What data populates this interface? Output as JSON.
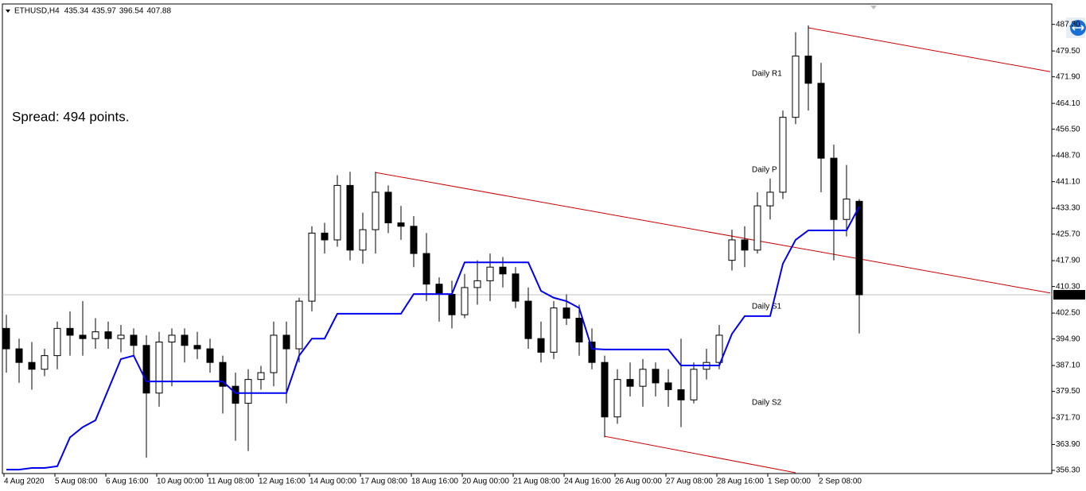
{
  "chart_data": {
    "type": "candlestick",
    "symbol": "ETHUSD,H4",
    "annotation": "Spread: 494 points.",
    "level_labels": [
      {
        "text": "Daily R1",
        "color": "#cc0000"
      },
      {
        "text": "Daily P",
        "color": "#808080"
      },
      {
        "text": "Daily S1",
        "color": "#2e9e2e"
      },
      {
        "text": "Daily S2",
        "color": "#2e9e2e"
      }
    ],
    "categories": [
      "4 Aug 2020",
      null,
      null,
      null,
      "5 Aug 08:00",
      null,
      null,
      null,
      "6 Aug 16:00",
      null,
      null,
      null,
      "10 Aug 00:00",
      null,
      null,
      null,
      "11 Aug 08:00",
      null,
      null,
      null,
      "12 Aug 16:00",
      null,
      null,
      null,
      "14 Aug 00:00",
      null,
      null,
      null,
      "17 Aug 08:00",
      null,
      null,
      null,
      "18 Aug 16:00",
      null,
      null,
      null,
      "20 Aug 00:00",
      null,
      null,
      null,
      "21 Aug 08:00",
      null,
      null,
      null,
      "24 Aug 16:00",
      null,
      null,
      null,
      "26 Aug 00:00",
      null,
      null,
      null,
      "27 Aug 08:00",
      null,
      null,
      null,
      "28 Aug 16:00",
      null,
      null,
      null,
      "1 Sep 00:00",
      null,
      null,
      null,
      "2 Sep 08:00",
      null,
      null,
      null
    ],
    "open": [
      398,
      392,
      388,
      386,
      390,
      398,
      396,
      395,
      397,
      395,
      396,
      393,
      379,
      394,
      396,
      393,
      392,
      388,
      381,
      376,
      383,
      385,
      396,
      392,
      406,
      426,
      424,
      440,
      421,
      427,
      438,
      429,
      428,
      420,
      411,
      408,
      402,
      410,
      412,
      416,
      414,
      406,
      395,
      391,
      404,
      401,
      394,
      388,
      372,
      383,
      381,
      386,
      382,
      380,
      377,
      386,
      388,
      418,
      424,
      421,
      434,
      438,
      460,
      478,
      470,
      448,
      430,
      435.34
    ],
    "high": [
      402,
      395,
      394,
      392,
      400,
      403,
      406,
      401,
      400,
      399,
      398,
      396,
      397,
      398,
      398,
      397,
      395,
      390,
      385,
      386,
      387,
      400,
      400,
      407,
      428,
      429,
      443,
      444,
      432,
      444,
      440,
      434,
      431,
      426,
      413,
      412,
      414,
      418,
      420,
      419,
      416,
      410,
      400,
      406,
      408,
      405,
      398,
      390,
      386,
      388,
      389,
      388,
      386,
      395,
      388,
      392,
      399,
      427,
      428,
      438,
      442,
      462,
      485,
      487,
      476,
      452,
      446,
      435.97
    ],
    "low": [
      385,
      382,
      380,
      384,
      386,
      390,
      390,
      392,
      392,
      391,
      390,
      360,
      375,
      381,
      388,
      389,
      385,
      373,
      365,
      362,
      380,
      381,
      376,
      388,
      403,
      420,
      422,
      418,
      417,
      420,
      426,
      424,
      416,
      406,
      400,
      398,
      401,
      405,
      406,
      410,
      404,
      392,
      388,
      389,
      399,
      390,
      386,
      366,
      370,
      378,
      375,
      378,
      375,
      369,
      376,
      383,
      386,
      415,
      416,
      420,
      430,
      436,
      458,
      462,
      438,
      418,
      425,
      396.54
    ],
    "close": [
      392,
      388,
      386,
      390,
      398,
      396,
      395,
      397,
      395,
      396,
      393,
      379,
      394,
      396,
      393,
      392,
      388,
      381,
      376,
      383,
      385,
      396,
      392,
      406,
      426,
      424,
      440,
      421,
      427,
      438,
      429,
      428,
      420,
      411,
      408,
      402,
      410,
      412,
      416,
      414,
      406,
      395,
      391,
      404,
      401,
      394,
      388,
      372,
      383,
      381,
      386,
      382,
      380,
      377,
      386,
      388,
      396,
      424,
      421,
      434,
      438,
      460,
      478,
      470,
      448,
      430,
      436,
      407.88
    ],
    "up_color": "#ffffff",
    "down_color": "#000000",
    "indicator": {
      "color": "#0000ee",
      "values": [
        356.5,
        356.5,
        357,
        357,
        357.5,
        366,
        369,
        371,
        380,
        389,
        390,
        382.4,
        382.4,
        382.4,
        382.4,
        382.4,
        382.4,
        382.4,
        379,
        379,
        379,
        379,
        379,
        390,
        395,
        395,
        402.3,
        402.3,
        402.3,
        402.3,
        402.3,
        402.3,
        408.1,
        408.1,
        408.1,
        408.1,
        417.4,
        417.4,
        417.4,
        417.4,
        417.4,
        417.4,
        409,
        407,
        406,
        404,
        392,
        391.8,
        391.8,
        391.8,
        391.8,
        391.8,
        391.8,
        387.1,
        387.1,
        387.1,
        387.1,
        396.4,
        401.6,
        401.6,
        401.6,
        417,
        424,
        426.8,
        426.8,
        426.8,
        426.8,
        433.8
      ]
    },
    "trendlines": [
      {
        "color": "#cc0000",
        "x": [
          29,
          82
        ],
        "y": [
          443.8,
          408.4
        ]
      },
      {
        "color": "#cc0000",
        "x": [
          63,
          82
        ],
        "y": [
          486.3,
          473.4
        ]
      },
      {
        "color": "#cc0000",
        "x": [
          47,
          62
        ],
        "y": [
          366.3,
          355.6
        ]
      }
    ],
    "ylim": [
      355.37,
      492.6
    ],
    "yticks": [
      {
        "value": 487.3,
        "label": "487.30"
      },
      {
        "value": 479.5,
        "label": "479.50"
      },
      {
        "value": 471.9,
        "label": "471.90"
      },
      {
        "value": 464.1,
        "label": "464.10"
      },
      {
        "value": 456.5,
        "label": "456.50"
      },
      {
        "value": 448.7,
        "label": "448.70"
      },
      {
        "value": 441.1,
        "label": "441.10"
      },
      {
        "value": 433.3,
        "label": "433.30"
      },
      {
        "value": 425.7,
        "label": "425.70"
      },
      {
        "value": 417.9,
        "label": "417.90"
      },
      {
        "value": 410.3,
        "label": "410.30"
      },
      {
        "value": 402.5,
        "label": "402.50"
      },
      {
        "value": 394.9,
        "label": "394.90"
      },
      {
        "value": 387.1,
        "label": "387.10"
      },
      {
        "value": 379.5,
        "label": "379.50"
      },
      {
        "value": 371.7,
        "label": "371.70"
      },
      {
        "value": 363.9,
        "label": "363.90"
      },
      {
        "value": 356.3,
        "label": "356.30"
      }
    ]
  }
}
